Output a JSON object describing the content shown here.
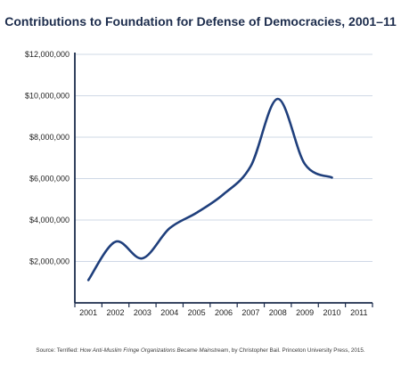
{
  "chart_data": {
    "type": "line",
    "title": "Contributions to Foundation for Defense of Democracies, 2001–11",
    "xlabel": "",
    "ylabel": "",
    "categories": [
      "2001",
      "2002",
      "2003",
      "2004",
      "2005",
      "2006",
      "2007",
      "2008",
      "2009",
      "2010",
      "2011"
    ],
    "series": [
      {
        "values": [
          1100000,
          2950000,
          2150000,
          3600000,
          4350000,
          5250000,
          6600000,
          9850000,
          6700000,
          6050000,
          null
        ]
      }
    ],
    "ylim": [
      0,
      12000000
    ],
    "yticks": [
      2000000,
      4000000,
      6000000,
      8000000,
      10000000,
      12000000
    ],
    "ytick_labels": [
      "$2,000,000",
      "$4,000,000",
      "$6,000,000",
      "$8,000,000",
      "$10,000,000",
      "$12,000,000"
    ],
    "line_color": "#1f3f7c",
    "axis_color": "#1c2c4c",
    "grid": true,
    "grid_color": "#cfd8e6",
    "legend": "none"
  },
  "source": {
    "prefix": "Source: Terrified: ",
    "book": "How Anti-Muslim Fringe Organizations Became Mainstream",
    "suffix": ", by Christopher Bail. Princeton University Press, 2015."
  }
}
